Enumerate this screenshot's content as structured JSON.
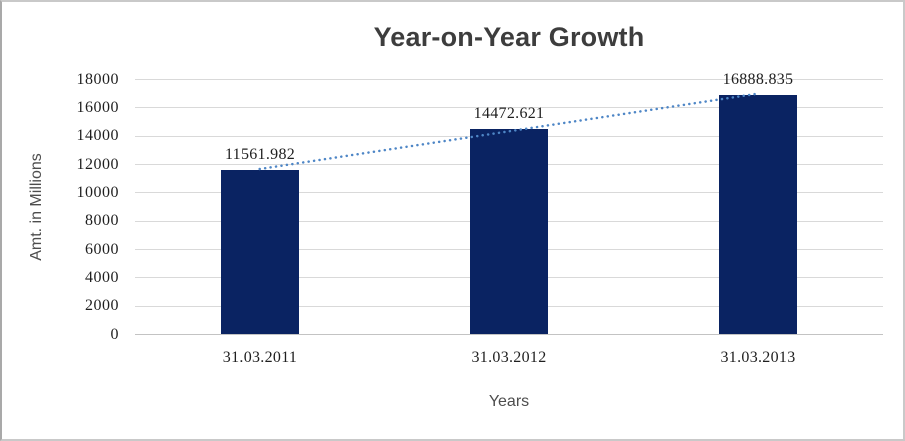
{
  "chart_data": {
    "type": "bar",
    "title": "Year-on-Year Growth",
    "categories": [
      "31.03.2011",
      "31.03.2012",
      "31.03.2013"
    ],
    "values": [
      11561.982,
      14472.621,
      16888.835
    ],
    "data_labels": [
      "11561.982",
      "14472.621",
      "16888.835"
    ],
    "xlabel": "Years",
    "ylabel": "Amt. in Millions",
    "ylim": [
      0,
      18000
    ],
    "ytick_step": 2000,
    "yticks": [
      0,
      2000,
      4000,
      6000,
      8000,
      10000,
      12000,
      14000,
      16000,
      18000
    ],
    "grid": true,
    "legend": false,
    "trendline": {
      "type": "linear",
      "style": "dotted"
    },
    "colors": {
      "bar": "#0a2362",
      "trendline": "#4e86c6",
      "gridline": "#d9d9d9",
      "axis_line": "#c3c3c3",
      "title_text": "#3d3d3d",
      "axis_title_text": "#4d4d4d",
      "tick_text": "#1f1f1f"
    }
  }
}
